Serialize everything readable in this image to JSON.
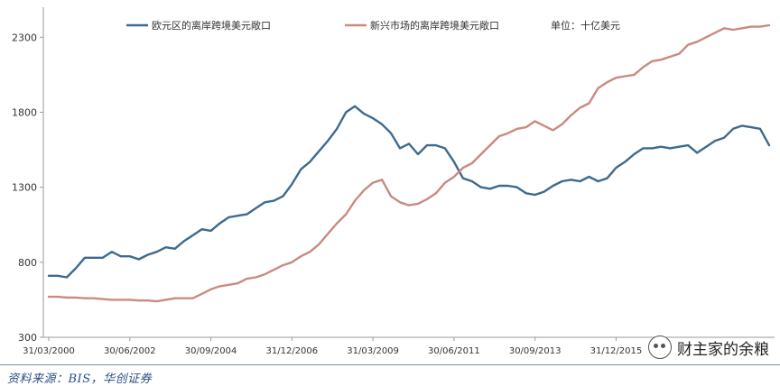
{
  "chart_data": {
    "type": "line",
    "title": "",
    "xlabel": "",
    "ylabel": "",
    "unit_note": "单位：十亿美元",
    "ylim": [
      300,
      2500
    ],
    "yticks": [
      300,
      800,
      1300,
      1800,
      2300
    ],
    "x_tick_labels": [
      "31/03/2000",
      "30/06/2002",
      "30/09/2004",
      "31/12/2006",
      "31/03/2009",
      "30/06/2011",
      "30/09/2013",
      "31/12/2015"
    ],
    "grid": false,
    "legend_position": "top",
    "series": [
      {
        "name": "欧元区的离岸跨境美元敞口",
        "color": "#3d6a8e",
        "x": [
          "2000Q1",
          "2000Q2",
          "2000Q3",
          "2000Q4",
          "2001Q1",
          "2001Q2",
          "2001Q3",
          "2001Q4",
          "2002Q1",
          "2002Q2",
          "2002Q3",
          "2002Q4",
          "2003Q1",
          "2003Q2",
          "2003Q3",
          "2003Q4",
          "2004Q1",
          "2004Q2",
          "2004Q3",
          "2004Q4",
          "2005Q1",
          "2005Q2",
          "2005Q3",
          "2005Q4",
          "2006Q1",
          "2006Q2",
          "2006Q3",
          "2006Q4",
          "2007Q1",
          "2007Q2",
          "2007Q3",
          "2007Q4",
          "2008Q1",
          "2008Q2",
          "2008Q3",
          "2008Q4",
          "2009Q1",
          "2009Q2",
          "2009Q3",
          "2009Q4",
          "2010Q1",
          "2010Q2",
          "2010Q3",
          "2010Q4",
          "2011Q1",
          "2011Q2",
          "2011Q3",
          "2011Q4",
          "2012Q1",
          "2012Q2",
          "2012Q3",
          "2012Q4",
          "2013Q1",
          "2013Q2",
          "2013Q3",
          "2013Q4",
          "2014Q1",
          "2014Q2",
          "2014Q3",
          "2014Q4",
          "2015Q1",
          "2015Q2",
          "2015Q3",
          "2015Q4",
          "2016Q1",
          "2016Q2",
          "2016Q3",
          "2016Q4",
          "2017Q1",
          "2017Q2",
          "2017Q3",
          "2017Q4",
          "2018Q1",
          "2018Q2",
          "2018Q3",
          "2018Q4",
          "2019Q1",
          "2019Q2",
          "2019Q3",
          "2019Q4",
          "2020Q1"
        ],
        "values": [
          710,
          710,
          700,
          760,
          830,
          830,
          830,
          870,
          840,
          840,
          820,
          850,
          870,
          900,
          890,
          940,
          980,
          1020,
          1010,
          1060,
          1100,
          1110,
          1120,
          1160,
          1200,
          1210,
          1240,
          1320,
          1420,
          1470,
          1540,
          1610,
          1690,
          1800,
          1840,
          1790,
          1760,
          1720,
          1660,
          1560,
          1590,
          1520,
          1580,
          1580,
          1560,
          1470,
          1360,
          1340,
          1300,
          1290,
          1310,
          1310,
          1300,
          1260,
          1250,
          1270,
          1310,
          1340,
          1350,
          1340,
          1370,
          1340,
          1360,
          1430,
          1470,
          1520,
          1560,
          1560,
          1570,
          1560,
          1570,
          1580,
          1530,
          1570,
          1610,
          1630,
          1690,
          1710,
          1700,
          1690,
          1580
        ]
      },
      {
        "name": "新兴市场的离岸跨境美元敞口",
        "color": "#c98a80",
        "x": [
          "2000Q1",
          "2000Q2",
          "2000Q3",
          "2000Q4",
          "2001Q1",
          "2001Q2",
          "2001Q3",
          "2001Q4",
          "2002Q1",
          "2002Q2",
          "2002Q3",
          "2002Q4",
          "2003Q1",
          "2003Q2",
          "2003Q3",
          "2003Q4",
          "2004Q1",
          "2004Q2",
          "2004Q3",
          "2004Q4",
          "2005Q1",
          "2005Q2",
          "2005Q3",
          "2005Q4",
          "2006Q1",
          "2006Q2",
          "2006Q3",
          "2006Q4",
          "2007Q1",
          "2007Q2",
          "2007Q3",
          "2007Q4",
          "2008Q1",
          "2008Q2",
          "2008Q3",
          "2008Q4",
          "2009Q1",
          "2009Q2",
          "2009Q3",
          "2009Q4",
          "2010Q1",
          "2010Q2",
          "2010Q3",
          "2010Q4",
          "2011Q1",
          "2011Q2",
          "2011Q3",
          "2011Q4",
          "2012Q1",
          "2012Q2",
          "2012Q3",
          "2012Q4",
          "2013Q1",
          "2013Q2",
          "2013Q3",
          "2013Q4",
          "2014Q1",
          "2014Q2",
          "2014Q3",
          "2014Q4",
          "2015Q1",
          "2015Q2",
          "2015Q3",
          "2015Q4",
          "2016Q1",
          "2016Q2",
          "2016Q3",
          "2016Q4",
          "2017Q1",
          "2017Q2",
          "2017Q3",
          "2017Q4",
          "2018Q1",
          "2018Q2",
          "2018Q3",
          "2018Q4",
          "2019Q1",
          "2019Q2",
          "2019Q3",
          "2019Q4",
          "2020Q1"
        ],
        "values": [
          570,
          570,
          565,
          565,
          560,
          560,
          555,
          550,
          550,
          550,
          545,
          545,
          540,
          550,
          560,
          560,
          560,
          590,
          620,
          640,
          650,
          660,
          690,
          700,
          720,
          750,
          780,
          800,
          840,
          870,
          920,
          990,
          1060,
          1120,
          1210,
          1280,
          1330,
          1350,
          1240,
          1200,
          1180,
          1190,
          1220,
          1260,
          1330,
          1370,
          1430,
          1460,
          1520,
          1580,
          1640,
          1660,
          1690,
          1700,
          1740,
          1710,
          1680,
          1720,
          1780,
          1830,
          1860,
          1960,
          2000,
          2030,
          2040,
          2050,
          2100,
          2140,
          2150,
          2170,
          2190,
          2250,
          2270,
          2300,
          2330,
          2360,
          2350,
          2360,
          2370,
          2370,
          2380
        ]
      }
    ]
  },
  "source_note": "资料来源：BIS，华创证券",
  "watermark": "财主家的余粮"
}
